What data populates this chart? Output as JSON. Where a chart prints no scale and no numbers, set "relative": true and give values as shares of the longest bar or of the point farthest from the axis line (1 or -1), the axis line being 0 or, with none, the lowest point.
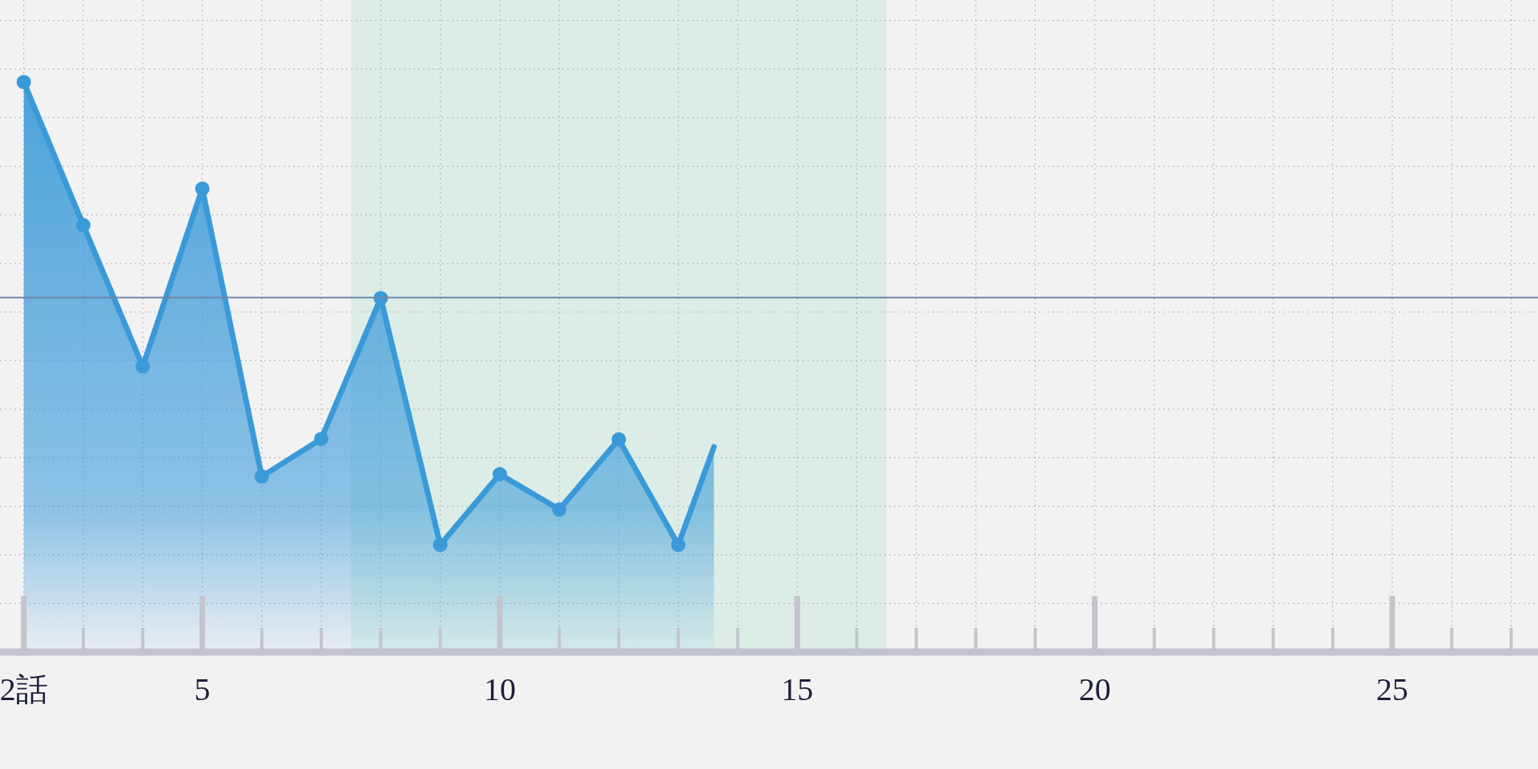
{
  "chart_data": {
    "type": "area",
    "relative": true,
    "xlim": [
      1.6,
      27.45
    ],
    "xticks": [
      {
        "value": 2,
        "label": "2話"
      },
      {
        "value": 3,
        "label": null
      },
      {
        "value": 4,
        "label": null
      },
      5,
      {
        "value": 6,
        "label": null
      },
      {
        "value": 7,
        "label": null
      },
      {
        "value": 8,
        "label": null
      },
      {
        "value": 9,
        "label": null
      },
      10,
      {
        "value": 11,
        "label": null
      },
      {
        "value": 12,
        "label": null
      },
      {
        "value": 13,
        "label": null
      },
      {
        "value": 14,
        "label": null
      },
      15,
      {
        "value": 16,
        "label": null
      },
      {
        "value": 17,
        "label": null
      },
      {
        "value": 18,
        "label": null
      },
      {
        "value": 19,
        "label": null
      },
      20,
      {
        "value": 21,
        "label": null
      },
      {
        "value": 22,
        "label": null
      },
      {
        "value": 23,
        "label": null
      },
      {
        "value": 24,
        "label": null
      },
      25,
      {
        "value": 26,
        "label": null
      },
      {
        "value": 27,
        "label": null
      }
    ],
    "series": [
      {
        "color": "#3a9ad9",
        "x": [
          2,
          3,
          4,
          5,
          6,
          7,
          8,
          9,
          10,
          11,
          12,
          13,
          13.6
        ],
        "values": [
          1,
          0.749,
          0.501,
          0.813,
          0.308,
          0.374,
          0.621,
          0.188,
          0.312,
          0.25,
          0.373,
          0.188,
          0.36
        ]
      }
    ],
    "marker": "circle",
    "line_style": "solid",
    "grid": true,
    "ref_lines": [
      {
        "axis": "y",
        "value": 0.622,
        "color": "#6f84a8"
      }
    ],
    "bands": [
      {
        "axis": "x",
        "from": 7.5,
        "to": 16.5,
        "color": "#d6ebe4"
      }
    ]
  }
}
